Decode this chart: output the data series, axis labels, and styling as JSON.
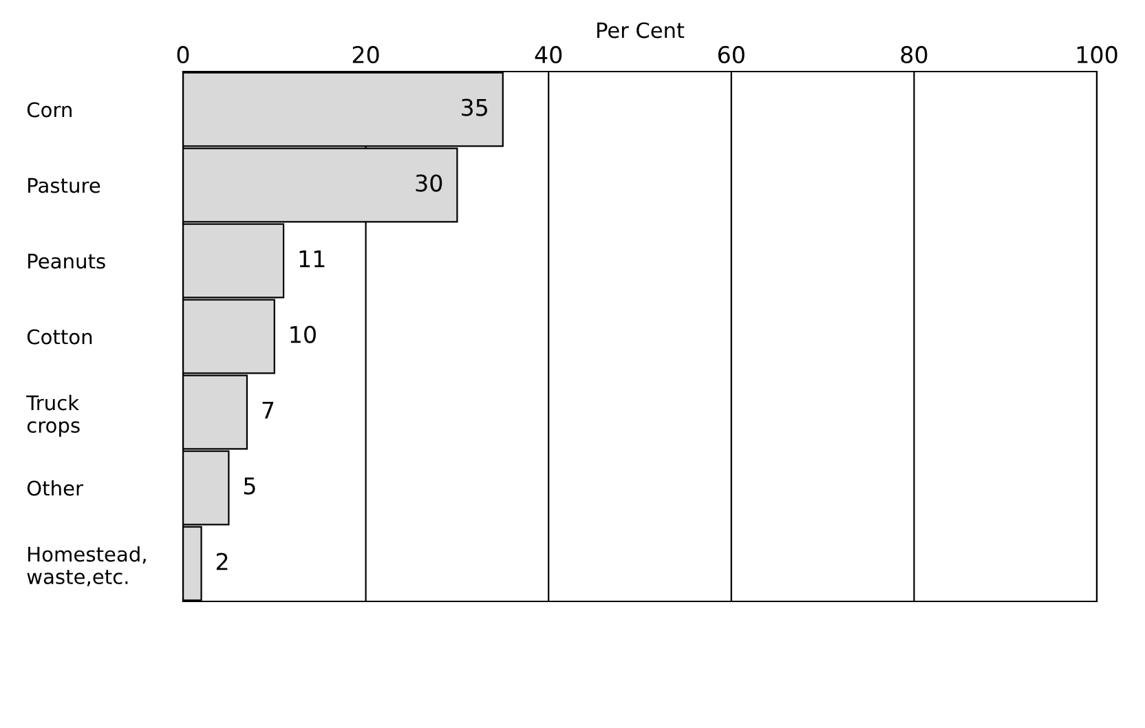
{
  "chart_data": {
    "type": "bar",
    "orientation": "horizontal",
    "xlabel": "Per Cent",
    "categories": [
      "Corn",
      "Pasture",
      "Peanuts",
      "Cotton",
      "Truck\ncrops",
      "Other",
      "Homestead,\nwaste,etc."
    ],
    "values": [
      35,
      30,
      11,
      10,
      7,
      5,
      2
    ],
    "color": "#d9d9d9",
    "xlim": [
      0,
      100
    ],
    "xticks": [
      0,
      20,
      40,
      60,
      80,
      100
    ],
    "grid": "x",
    "data_labels": true
  }
}
